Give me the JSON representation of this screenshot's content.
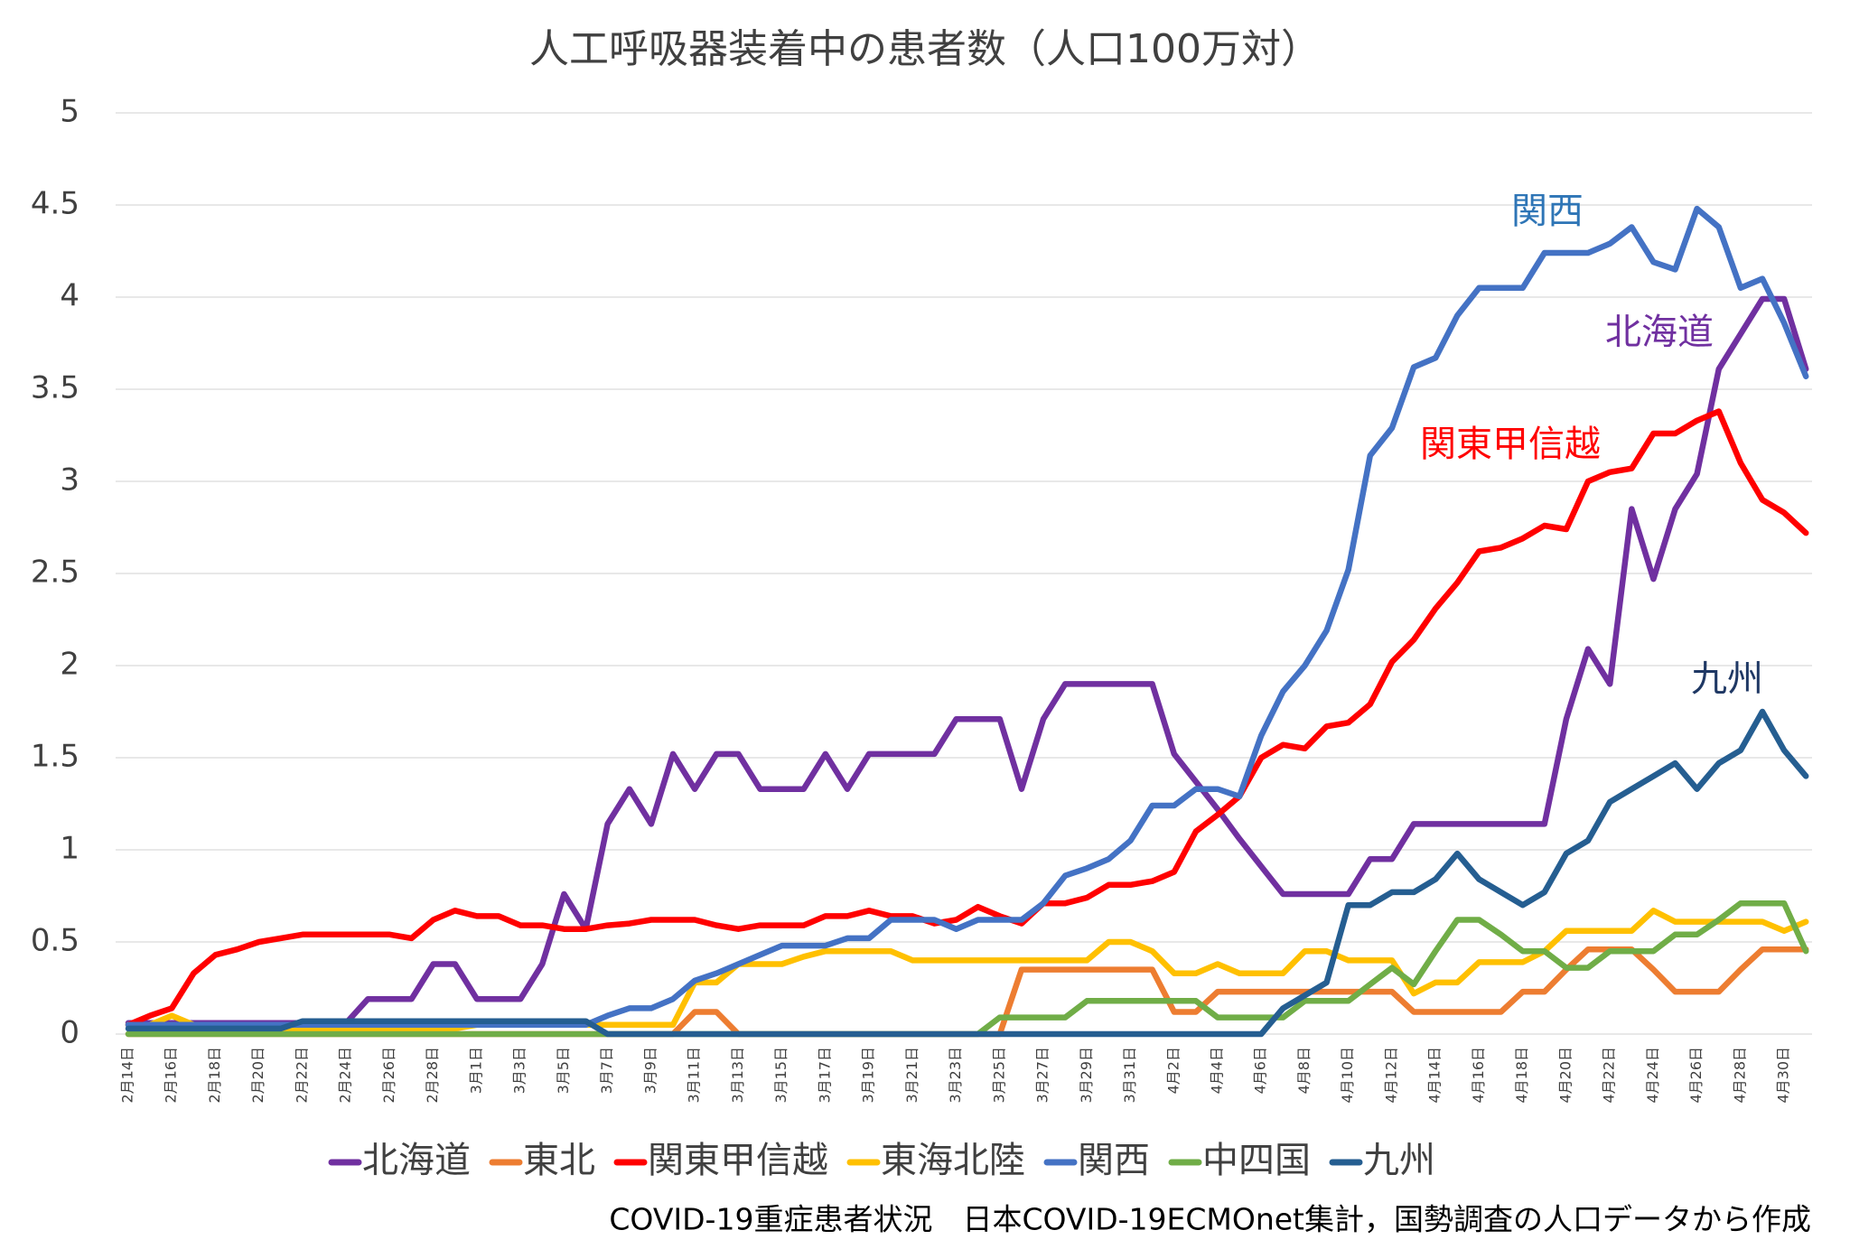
{
  "chart_data": {
    "type": "line",
    "title": "人工呼吸器装着中の患者数（人口100万対）",
    "footnote": "COVID-19重症患者状況　日本COVID-19ECMOnet集計，国勢調査の人口データから作成",
    "categories": [
      "2月14日",
      null,
      "2月16日",
      null,
      "2月18日",
      null,
      "2月20日",
      null,
      "2月22日",
      null,
      "2月24日",
      null,
      "2月26日",
      null,
      "2月28日",
      null,
      "3月1日",
      null,
      "3月3日",
      null,
      "3月5日",
      null,
      "3月7日",
      null,
      "3月9日",
      null,
      "3月11日",
      null,
      "3月13日",
      null,
      "3月15日",
      null,
      "3月17日",
      null,
      "3月19日",
      null,
      "3月21日",
      null,
      "3月23日",
      null,
      "3月25日",
      null,
      "3月27日",
      null,
      "3月29日",
      null,
      "3月31日",
      null,
      "4月2日",
      null,
      "4月4日",
      null,
      "4月6日",
      null,
      "4月8日",
      null,
      "4月10日",
      null,
      "4月12日",
      null,
      "4月14日",
      null,
      "4月16日",
      null,
      "4月18日",
      null,
      "4月20日",
      null,
      "4月22日",
      null,
      "4月24日",
      null,
      "4月26日",
      null,
      "4月28日",
      null,
      "4月30日",
      null
    ],
    "ylim": [
      0,
      5
    ],
    "yticks": [
      0,
      0.5,
      1,
      1.5,
      2,
      2.5,
      3,
      3.5,
      4,
      4.5,
      5
    ],
    "grid": true,
    "legend": "bottom",
    "series": [
      {
        "name": "北海道",
        "color": "#7030a0",
        "values": [
          0.06,
          0.06,
          0.06,
          0.06,
          0.06,
          0.06,
          0.06,
          0.06,
          0.06,
          0.06,
          0.06,
          0.19,
          0.19,
          0.19,
          0.38,
          0.38,
          0.19,
          0.19,
          0.19,
          0.38,
          0.76,
          0.57,
          1.14,
          1.33,
          1.14,
          1.52,
          1.33,
          1.52,
          1.52,
          1.33,
          1.33,
          1.33,
          1.52,
          1.33,
          1.52,
          1.52,
          1.52,
          1.52,
          1.71,
          1.71,
          1.71,
          1.33,
          1.71,
          1.9,
          1.9,
          1.9,
          1.9,
          1.9,
          1.52,
          1.37,
          1.22,
          1.06,
          0.91,
          0.76,
          0.76,
          0.76,
          0.76,
          0.95,
          0.95,
          1.14,
          1.14,
          1.14,
          1.14,
          1.14,
          1.14,
          1.14,
          1.71,
          2.09,
          1.9,
          2.85,
          2.47,
          2.85,
          3.04,
          3.61,
          3.8,
          3.99,
          3.99,
          3.61
        ]
      },
      {
        "name": "東北",
        "color": "#ed7d31",
        "values": [
          0,
          0,
          0,
          0,
          0,
          0,
          0,
          0,
          0,
          0,
          0,
          0,
          0,
          0,
          0,
          0,
          0,
          0,
          0,
          0,
          0,
          0,
          0,
          0,
          0,
          0,
          0.12,
          0.12,
          0,
          0,
          0,
          0,
          0,
          0,
          0,
          0,
          0,
          0,
          0,
          0,
          0,
          0.35,
          0.35,
          0.35,
          0.35,
          0.35,
          0.35,
          0.35,
          0.12,
          0.12,
          0.23,
          0.23,
          0.23,
          0.23,
          0.23,
          0.23,
          0.23,
          0.23,
          0.23,
          0.12,
          0.12,
          0.12,
          0.12,
          0.12,
          0.23,
          0.23,
          0.35,
          0.46,
          0.46,
          0.46,
          0.35,
          0.23,
          0.23,
          0.23,
          0.35,
          0.46,
          0.46,
          0.46
        ]
      },
      {
        "name": "関東甲信越",
        "color": "#ff0000",
        "values": [
          0.05,
          0.1,
          0.14,
          0.33,
          0.43,
          0.46,
          0.5,
          0.52,
          0.54,
          0.54,
          0.54,
          0.54,
          0.54,
          0.52,
          0.62,
          0.67,
          0.64,
          0.64,
          0.59,
          0.59,
          0.57,
          0.57,
          0.59,
          0.6,
          0.62,
          0.62,
          0.62,
          0.59,
          0.57,
          0.59,
          0.59,
          0.59,
          0.64,
          0.64,
          0.67,
          0.64,
          0.64,
          0.6,
          0.62,
          0.69,
          0.64,
          0.6,
          0.71,
          0.71,
          0.74,
          0.81,
          0.81,
          0.83,
          0.88,
          1.1,
          1.19,
          1.29,
          1.5,
          1.57,
          1.55,
          1.67,
          1.69,
          1.79,
          2.02,
          2.14,
          2.31,
          2.45,
          2.62,
          2.64,
          2.69,
          2.76,
          2.74,
          3.0,
          3.05,
          3.07,
          3.26,
          3.26,
          3.33,
          3.38,
          3.1,
          2.9,
          2.83,
          2.72
        ]
      },
      {
        "name": "東海北陸",
        "color": "#ffc000",
        "values": [
          0.05,
          0.05,
          0.1,
          0.05,
          0.03,
          0.03,
          0.03,
          0.03,
          0.03,
          0.03,
          0.03,
          0.03,
          0.03,
          0.03,
          0.03,
          0.03,
          0.05,
          0.05,
          0.05,
          0.05,
          0.05,
          0.05,
          0.05,
          0.05,
          0.05,
          0.05,
          0.28,
          0.28,
          0.38,
          0.38,
          0.38,
          0.42,
          0.45,
          0.45,
          0.45,
          0.45,
          0.4,
          0.4,
          0.4,
          0.4,
          0.4,
          0.4,
          0.4,
          0.4,
          0.4,
          0.5,
          0.5,
          0.45,
          0.33,
          0.33,
          0.38,
          0.33,
          0.33,
          0.33,
          0.45,
          0.45,
          0.4,
          0.4,
          0.4,
          0.22,
          0.28,
          0.28,
          0.39,
          0.39,
          0.39,
          0.45,
          0.56,
          0.56,
          0.56,
          0.56,
          0.67,
          0.61,
          0.61,
          0.61,
          0.61,
          0.61,
          0.56,
          0.61
        ]
      },
      {
        "name": "関西",
        "color": "#4472c4",
        "values": [
          0.05,
          0.05,
          0.05,
          0.05,
          0.05,
          0.05,
          0.05,
          0.05,
          0.05,
          0.05,
          0.05,
          0.05,
          0.05,
          0.05,
          0.05,
          0.05,
          0.05,
          0.05,
          0.05,
          0.05,
          0.05,
          0.05,
          0.1,
          0.14,
          0.14,
          0.19,
          0.29,
          0.33,
          0.38,
          0.43,
          0.48,
          0.48,
          0.48,
          0.52,
          0.52,
          0.62,
          0.62,
          0.62,
          0.57,
          0.62,
          0.62,
          0.62,
          0.71,
          0.86,
          0.9,
          0.95,
          1.05,
          1.24,
          1.24,
          1.33,
          1.33,
          1.29,
          1.62,
          1.86,
          2.0,
          2.19,
          2.52,
          3.14,
          3.29,
          3.62,
          3.67,
          3.9,
          4.05,
          4.05,
          4.05,
          4.24,
          4.24,
          4.24,
          4.29,
          4.38,
          4.19,
          4.15,
          4.48,
          4.38,
          4.05,
          4.1,
          3.86,
          3.57
        ]
      },
      {
        "name": "中四国",
        "color": "#70ad47",
        "values": [
          0,
          0,
          0,
          0,
          0,
          0,
          0,
          0,
          0,
          0,
          0,
          0,
          0,
          0,
          0,
          0,
          0,
          0,
          0,
          0,
          0,
          0,
          0,
          0,
          0,
          0,
          0,
          0,
          0,
          0,
          0,
          0,
          0,
          0,
          0,
          0,
          0,
          0,
          0,
          0,
          0.09,
          0.09,
          0.09,
          0.09,
          0.18,
          0.18,
          0.18,
          0.18,
          0.18,
          0.18,
          0.09,
          0.09,
          0.09,
          0.09,
          0.18,
          0.18,
          0.18,
          0.27,
          0.36,
          0.27,
          0.45,
          0.62,
          0.62,
          0.54,
          0.45,
          0.45,
          0.36,
          0.36,
          0.45,
          0.45,
          0.45,
          0.54,
          0.54,
          0.62,
          0.71,
          0.71,
          0.71,
          0.45
        ]
      },
      {
        "name": "九州",
        "color": "#255e91",
        "values": [
          0.03,
          0.03,
          0.03,
          0.03,
          0.03,
          0.03,
          0.03,
          0.03,
          0.07,
          0.07,
          0.07,
          0.07,
          0.07,
          0.07,
          0.07,
          0.07,
          0.07,
          0.07,
          0.07,
          0.07,
          0.07,
          0.07,
          0,
          0,
          0,
          0,
          0,
          0,
          0,
          0,
          0,
          0,
          0,
          0,
          0,
          0,
          0,
          0,
          0,
          0,
          0,
          0,
          0,
          0,
          0,
          0,
          0,
          0,
          0,
          0,
          0,
          0,
          0,
          0.14,
          0.21,
          0.28,
          0.7,
          0.7,
          0.77,
          0.77,
          0.84,
          0.98,
          0.84,
          0.77,
          0.7,
          0.77,
          0.98,
          1.05,
          1.26,
          1.33,
          1.4,
          1.47,
          1.33,
          1.47,
          1.54,
          1.75,
          1.54,
          1.4
        ]
      }
    ],
    "annotations": [
      {
        "text": "関西",
        "color": "#2e75b6"
      },
      {
        "text": "北海道",
        "color": "#7030a0"
      },
      {
        "text": "関東甲信越",
        "color": "#ff0000"
      },
      {
        "text": "九州",
        "color": "#1f3864"
      }
    ]
  }
}
